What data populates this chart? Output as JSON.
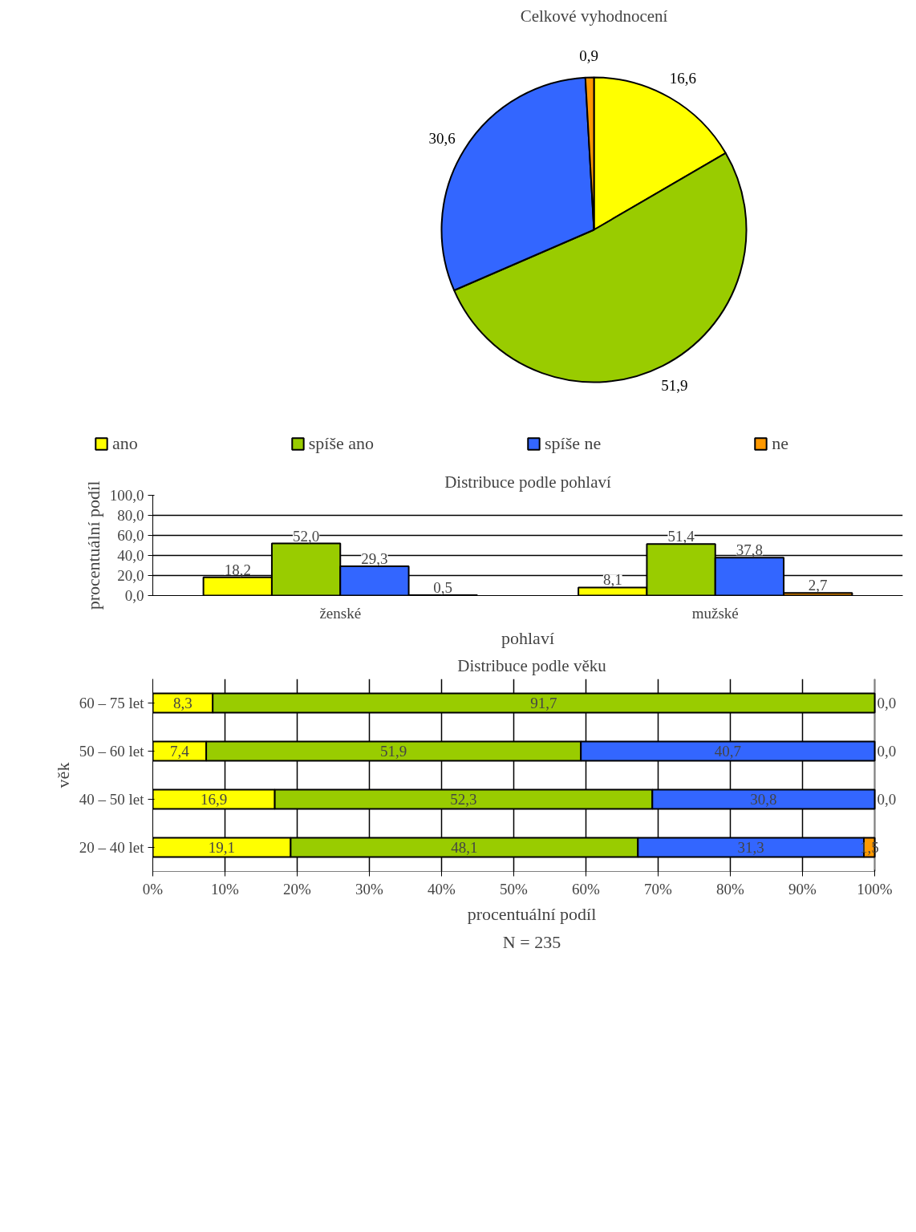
{
  "chart_data": [
    {
      "type": "pie",
      "title": "Celkové vyhodnocení",
      "categories": [
        "ano",
        "spíše ano",
        "spíše ne",
        "ne"
      ],
      "values": [
        16.6,
        51.9,
        30.6,
        0.9
      ],
      "colors": [
        "#ffff00",
        "#99cc00",
        "#3366ff",
        "#ff9900"
      ],
      "value_labels": [
        "16,6",
        "51,9",
        "30,6",
        "0,9"
      ],
      "legend": "bottom"
    },
    {
      "type": "bar",
      "title": "Distribuce podle pohlaví",
      "xlabel": "pohlaví",
      "ylabel": "procentuální podíl",
      "categories": [
        "ženské",
        "mužské"
      ],
      "series": [
        {
          "color": "#ffff00",
          "values": [
            18.2,
            8.1
          ],
          "value_labels": [
            "18,2",
            "8,1"
          ]
        },
        {
          "color": "#99cc00",
          "values": [
            52.0,
            51.4
          ],
          "value_labels": [
            "52,0",
            "51,4"
          ]
        },
        {
          "color": "#3366ff",
          "values": [
            29.3,
            37.8
          ],
          "value_labels": [
            "29,3",
            "37,8"
          ]
        },
        {
          "color": "#ff9900",
          "values": [
            0.5,
            2.7
          ],
          "value_labels": [
            "0,5",
            "2,7"
          ]
        }
      ],
      "ylim": [
        0,
        100
      ],
      "yticks": [
        {
          "value": 0,
          "label": "0,0"
        },
        {
          "value": 20,
          "label": "20,0"
        },
        {
          "value": 40,
          "label": "40,0"
        },
        {
          "value": 60,
          "label": "60,0"
        },
        {
          "value": 80,
          "label": "80,0"
        },
        {
          "value": 100,
          "label": "100,0"
        }
      ],
      "grid": "y"
    },
    {
      "type": "bar",
      "orientation": "horizontal",
      "stacked": true,
      "title": "Distribuce podle věku",
      "xlabel": "procentuální podíl",
      "ylabel": "věk",
      "categories": [
        "60 – 75 let",
        "50 – 60 let",
        "40 – 50 let",
        "20 – 40 let"
      ],
      "series": [
        {
          "color": "#ffff00",
          "values": [
            8.3,
            7.4,
            16.9,
            19.1
          ],
          "value_labels": [
            "8,3",
            "7,4",
            "16,9",
            "19,1"
          ]
        },
        {
          "color": "#99cc00",
          "values": [
            91.7,
            51.9,
            52.3,
            48.1
          ],
          "value_labels": [
            "91,7",
            "51,9",
            "52,3",
            "48,1"
          ]
        },
        {
          "color": "#3366ff",
          "values": [
            0,
            40.7,
            30.8,
            31.3
          ],
          "value_labels": [
            null,
            "40,7",
            "30,8",
            "31,3"
          ]
        },
        {
          "color": "#ff9900",
          "values": [
            0,
            0,
            0,
            1.5
          ],
          "value_labels": [
            "0,0",
            "0,0",
            "0,0",
            "1,5"
          ]
        }
      ],
      "xlim": [
        0,
        100
      ],
      "xticks": [
        {
          "value": 0,
          "label": "0%"
        },
        {
          "value": 10,
          "label": "10%"
        },
        {
          "value": 20,
          "label": "20%"
        },
        {
          "value": 30,
          "label": "30%"
        },
        {
          "value": 40,
          "label": "40%"
        },
        {
          "value": 50,
          "label": "50%"
        },
        {
          "value": 60,
          "label": "60%"
        },
        {
          "value": 70,
          "label": "70%"
        },
        {
          "value": 80,
          "label": "80%"
        },
        {
          "value": 90,
          "label": "90%"
        },
        {
          "value": 100,
          "label": "100%"
        }
      ],
      "grid": "x",
      "annotations": [
        "N = 235"
      ]
    }
  ]
}
